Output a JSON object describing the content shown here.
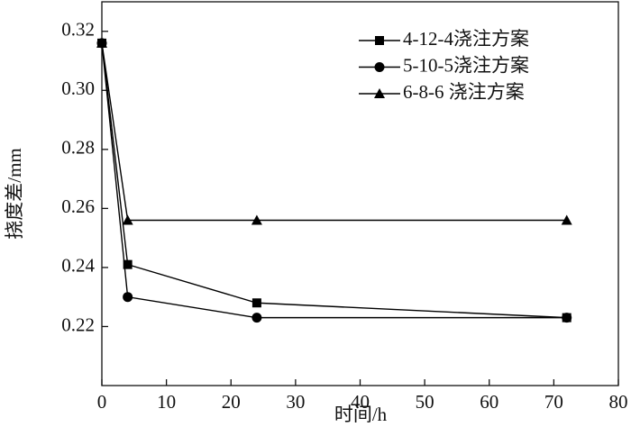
{
  "chart_data": {
    "type": "line",
    "x_label": "时间/h",
    "y_label": "挠度差/mm",
    "xlim": [
      0,
      80
    ],
    "xticks": [
      0,
      10,
      20,
      30,
      40,
      50,
      60,
      70,
      80
    ],
    "ylim": [
      0.2,
      0.33
    ],
    "yticks": [
      {
        "value": 0.22,
        "label": "0.22"
      },
      {
        "value": 0.24,
        "label": "0.24"
      },
      {
        "value": 0.26,
        "label": "0.26"
      },
      {
        "value": 0.28,
        "label": "0.28"
      },
      {
        "value": 0.3,
        "label": "0.30"
      },
      {
        "value": 0.32,
        "label": "0.32"
      }
    ],
    "legend": "upper right",
    "series": [
      {
        "name": "4-12-4浇注方案",
        "color": "#000000",
        "marker": "square",
        "x": [
          0,
          4,
          24,
          72
        ],
        "values": [
          0.316,
          0.241,
          0.228,
          0.223
        ]
      },
      {
        "name": "5-10-5浇注方案",
        "color": "#000000",
        "marker": "circle",
        "x": [
          0,
          4,
          24,
          72
        ],
        "values": [
          0.316,
          0.23,
          0.223,
          0.223
        ]
      },
      {
        "name": "6-8-6 浇注方案",
        "color": "#000000",
        "marker": "triangle",
        "x": [
          0,
          4,
          24,
          72
        ],
        "values": [
          0.316,
          0.256,
          0.256,
          0.256
        ]
      }
    ]
  }
}
